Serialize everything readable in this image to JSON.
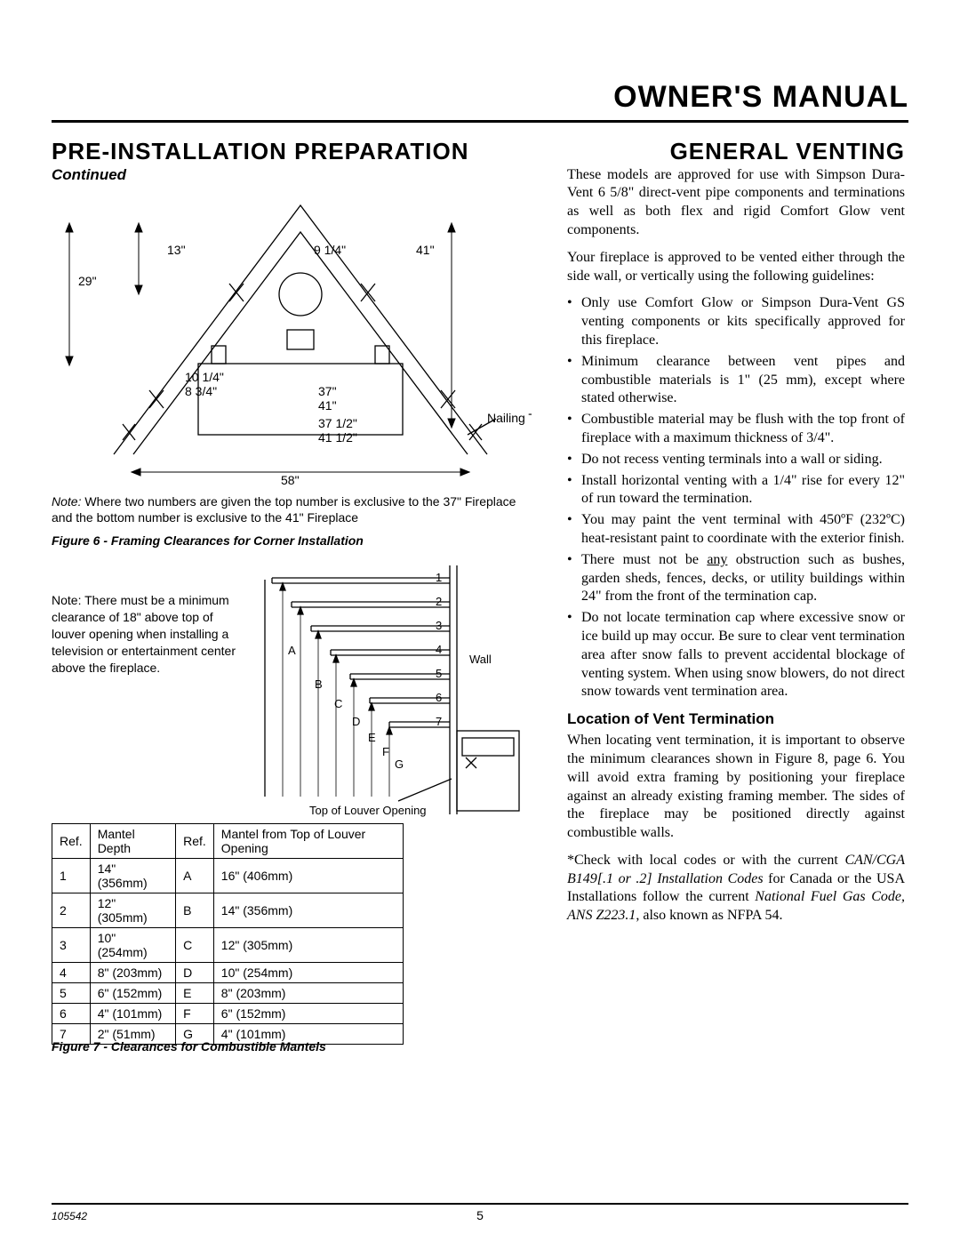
{
  "header": {
    "title": "OWNER'S MANUAL"
  },
  "left": {
    "heading": "PRE-INSTALLATION PREPARATION",
    "continued": "Continued",
    "fig6": {
      "dims": {
        "d29": "29\"",
        "d13": "13\"",
        "d9_14": "9 1/4\"",
        "d41": "41\"",
        "d10_14": "10 1/4\"",
        "d8_34": "8 3/4\"",
        "d37": "37\"",
        "d41b": "41\"",
        "d37_12": "37 1/2\"",
        "d41_12": "41 1/2\"",
        "d58": "58\"",
        "nailing_tabs": "Nailing Tabs"
      },
      "note_label": "Note:",
      "note_text": "Where two numbers are given the top number is exclusive to the 37\" Fireplace and the bottom number is exclusive to the 41\" Fireplace",
      "caption": "Figure 6 - Framing Clearances for Corner Installation"
    },
    "fig7": {
      "note_label": "Note:",
      "note_text": "There must be a minimum clearance of 18\" above top of louver opening when installing a television or entertainment center above the fireplace.",
      "louver_label": "Top of Louver Opening",
      "wall_label": "Wall",
      "row_labels": [
        "1",
        "2",
        "3",
        "4",
        "5",
        "6",
        "7"
      ],
      "letter_labels": [
        "A",
        "B",
        "C",
        "D",
        "E",
        "F",
        "G"
      ],
      "table": {
        "headers": [
          "Ref.",
          "Mantel Depth",
          "Ref.",
          "Mantel from Top of Louver Opening"
        ],
        "rows": [
          [
            "1",
            "14\" (356mm)",
            "A",
            "16\" (406mm)"
          ],
          [
            "2",
            "12\" (305mm)",
            "B",
            "14\" (356mm)"
          ],
          [
            "3",
            "10\" (254mm)",
            "C",
            "12\" (305mm)"
          ],
          [
            "4",
            "8\" (203mm)",
            "D",
            "10\" (254mm)"
          ],
          [
            "5",
            "6\" (152mm)",
            "E",
            "8\" (203mm)"
          ],
          [
            "6",
            "4\" (101mm)",
            "F",
            "6\" (152mm)"
          ],
          [
            "7",
            "2\" (51mm)",
            "G",
            "4\" (101mm)"
          ]
        ]
      },
      "caption": "Figure 7 - Clearances for Combustible Mantels"
    }
  },
  "right": {
    "heading": "GENERAL VENTING",
    "para1": "These models are approved for use with Simpson Dura-Vent 6 5/8\" direct-vent pipe components and terminations as well as both flex and rigid Comfort Glow vent components.",
    "para2": "Your fireplace is approved to be vented either through the side wall, or vertically using the following guidelines:",
    "bullets": [
      "Only use Comfort Glow or Simpson Dura-Vent GS venting components or kits specifically approved for this fireplace.",
      "Minimum clearance between vent pipes and combustible materials is 1\" (25 mm), except where stated otherwise.",
      "Combustible material may be flush with the top front of fireplace with a maximum thickness of 3/4\".",
      "Do not recess venting terminals into a wall or siding.",
      "Install horizontal venting with a 1/4\" rise for every 12\" of run toward the termination.",
      "You may paint the vent terminal with 450ºF (232ºC) heat-resistant paint to coordinate with the exterior finish.",
      "There must not be ¦any¦ obstruction such as bushes, garden sheds, fences, decks, or utility buildings within 24\" from the front of the termination cap.",
      "Do not locate termination cap where excessive snow or ice build up may occur. Be sure to clear vent termination area after snow falls to prevent accidental blockage of venting system. When using snow blowers, do not direct snow towards vent termination area."
    ],
    "subhead": "Location of Vent Termination",
    "para3": "When locating vent termination, it is important to observe the minimum clearances shown in Figure 8, page 6. You will avoid extra framing by positioning your fireplace against an already existing framing member. The sides of the fireplace may be positioned directly against combustible walls.",
    "para4_pre": "*Check with local codes or with the current ",
    "para4_ital1": "CAN/CGA B149[.1 or .2] Installation Codes",
    "para4_mid": " for Canada or the USA Installations follow the current ",
    "para4_ital2": "National Fuel Gas Code, ANS Z223.1",
    "para4_post": ", also known as NFPA 54."
  },
  "footer": {
    "page": "5",
    "code": "105542"
  },
  "colors": {
    "text": "#000000",
    "bg": "#ffffff",
    "rule": "#000000",
    "svg_stroke": "#000000"
  }
}
